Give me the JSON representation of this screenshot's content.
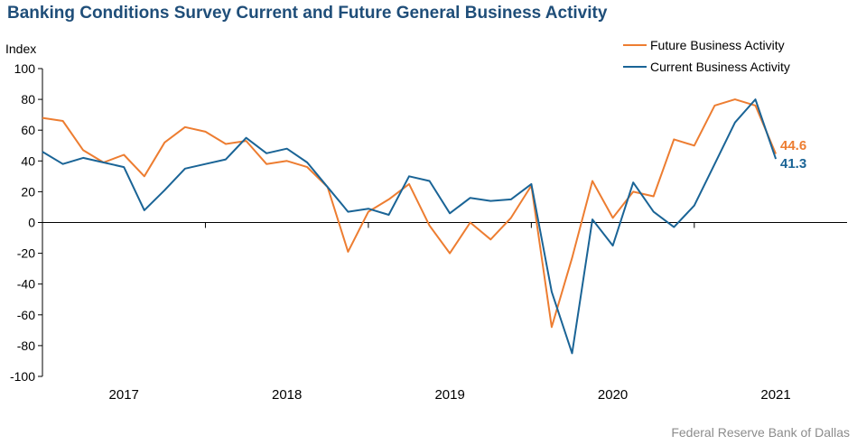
{
  "title": "Banking Conditions Survey Current and Future General Business Activity",
  "source": "Federal Reserve Bank of Dallas",
  "colors": {
    "future": "#ed7d31",
    "current": "#1a6496",
    "title": "#1f4e79",
    "axis": "#000000"
  },
  "chart_data": {
    "type": "line",
    "ylabel": "Index",
    "ylim": [
      -100,
      100
    ],
    "yticks": [
      100,
      80,
      60,
      40,
      20,
      0,
      -20,
      -40,
      -60,
      -80,
      -100
    ],
    "ytick_labels": [
      "100",
      "80",
      "60",
      "40",
      "20",
      "0",
      "-20",
      "-40",
      "-60",
      "-80",
      "-100"
    ],
    "xlim": [
      0,
      39.5
    ],
    "year_labels": [
      "2017",
      "2018",
      "2019",
      "2020",
      "2021"
    ],
    "year_label_positions": [
      4,
      12,
      20,
      28,
      36
    ],
    "year_boundaries": [
      8,
      16,
      24,
      32
    ],
    "x": [
      0,
      1,
      2,
      3,
      4,
      5,
      6,
      7,
      8,
      9,
      10,
      11,
      12,
      13,
      14,
      15,
      16,
      17,
      18,
      19,
      20,
      21,
      22,
      23,
      24,
      25,
      26,
      27,
      28,
      29,
      30,
      31,
      32,
      33,
      34,
      35,
      36
    ],
    "legend_position": "top-right",
    "series": [
      {
        "name": "Future Business Activity",
        "color": "#ed7d31",
        "values": [
          68,
          66,
          47,
          39,
          44,
          30,
          52,
          62,
          59,
          51,
          53,
          38,
          40,
          36,
          23,
          -19,
          7,
          15,
          25,
          -2,
          -20,
          0,
          -11,
          3,
          24,
          -68,
          -23,
          27,
          3,
          20,
          17,
          54,
          50,
          76,
          80,
          76,
          44.6
        ]
      },
      {
        "name": "Current Business Activity",
        "color": "#1a6496",
        "values": [
          46,
          38,
          42,
          39,
          36,
          8,
          21,
          35,
          38,
          41,
          55,
          45,
          48,
          39,
          23,
          7,
          9,
          5,
          30,
          27,
          6,
          16,
          14,
          15,
          25,
          -45,
          -85,
          2,
          -15,
          26,
          7,
          -3,
          11,
          38,
          65,
          80,
          41.3
        ]
      }
    ],
    "end_labels": [
      {
        "series": "Future Business Activity",
        "text": "44.6",
        "color": "#ed7d31"
      },
      {
        "series": "Current Business Activity",
        "text": "41.3",
        "color": "#1a6496"
      }
    ]
  }
}
